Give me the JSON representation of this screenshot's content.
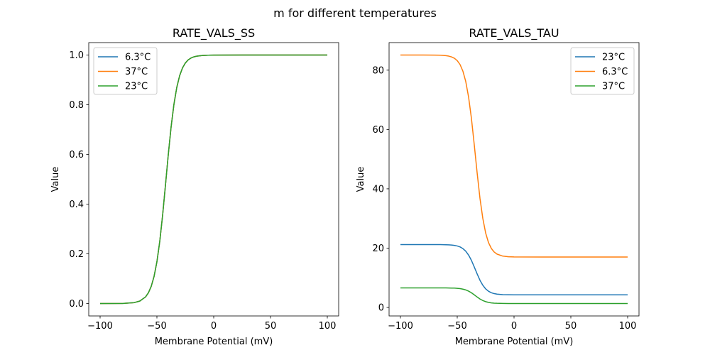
{
  "figure_title": "m for different temperatures",
  "colors": {
    "blue": "#1f77b4",
    "orange": "#ff7f0e",
    "green": "#2ca02c"
  },
  "chart_data": [
    {
      "type": "line",
      "title": "RATE_VALS_SS",
      "xlabel": "Membrane Potential (mV)",
      "ylabel": "Value",
      "xlim": [
        -110,
        110
      ],
      "ylim": [
        -0.05,
        1.05
      ],
      "xticks": [
        -100,
        -50,
        0,
        50,
        100
      ],
      "xtick_labels": [
        "−100",
        "−50",
        "0",
        "50",
        "100"
      ],
      "yticks": [
        0.0,
        0.2,
        0.4,
        0.6,
        0.8,
        1.0
      ],
      "ytick_labels": [
        "0.0",
        "0.2",
        "0.4",
        "0.6",
        "0.8",
        "1.0"
      ],
      "grid": false,
      "legend_placement": "upper-left",
      "x": [
        -100,
        -80,
        -70,
        -65,
        -60,
        -57.5,
        -55,
        -52.5,
        -50,
        -47.5,
        -45,
        -42.5,
        -40,
        -37.5,
        -35,
        -32.5,
        -30,
        -27.5,
        -25,
        -22.5,
        -20,
        -17.5,
        -15,
        -10,
        -5,
        0,
        25,
        50,
        75,
        100
      ],
      "series": [
        {
          "name": "6.3°C",
          "color": "#1f77b4",
          "values": [
            0.0,
            0.0005,
            0.0037,
            0.01,
            0.0266,
            0.0431,
            0.0691,
            0.1091,
            0.168,
            0.2497,
            0.3543,
            0.475,
            0.5987,
            0.7109,
            0.8022,
            0.8699,
            0.9168,
            0.9478,
            0.9677,
            0.9802,
            0.9879,
            0.9926,
            0.9955,
            0.9983,
            0.9994,
            0.9998,
            1.0,
            1.0,
            1.0,
            1.0
          ]
        },
        {
          "name": "37°C",
          "color": "#ff7f0e",
          "values": [
            0.0,
            0.0005,
            0.0037,
            0.01,
            0.0266,
            0.0431,
            0.0691,
            0.1091,
            0.168,
            0.2497,
            0.3543,
            0.475,
            0.5987,
            0.7109,
            0.8022,
            0.8699,
            0.9168,
            0.9478,
            0.9677,
            0.9802,
            0.9879,
            0.9926,
            0.9955,
            0.9983,
            0.9994,
            0.9998,
            1.0,
            1.0,
            1.0,
            1.0
          ]
        },
        {
          "name": "23°C",
          "color": "#2ca02c",
          "values": [
            0.0,
            0.0005,
            0.0037,
            0.01,
            0.0266,
            0.0431,
            0.0691,
            0.1091,
            0.168,
            0.2497,
            0.3543,
            0.475,
            0.5987,
            0.7109,
            0.8022,
            0.8699,
            0.9168,
            0.9478,
            0.9677,
            0.9802,
            0.9879,
            0.9926,
            0.9955,
            0.9983,
            0.9994,
            0.9998,
            1.0,
            1.0,
            1.0,
            1.0
          ]
        }
      ]
    },
    {
      "type": "line",
      "title": "RATE_VALS_TAU",
      "xlabel": "Membrane Potential (mV)",
      "ylabel": "Value",
      "xlim": [
        -110,
        110
      ],
      "ylim": [
        -2.86,
        89.29
      ],
      "xticks": [
        -100,
        -50,
        0,
        50,
        100
      ],
      "xtick_labels": [
        "−100",
        "−50",
        "0",
        "50",
        "100"
      ],
      "yticks": [
        0,
        20,
        40,
        60,
        80
      ],
      "ytick_labels": [
        "0",
        "20",
        "40",
        "60",
        "80"
      ],
      "grid": false,
      "legend_placement": "upper-right",
      "x": [
        -100,
        -80,
        -70,
        -65,
        -60,
        -57.5,
        -55,
        -52.5,
        -50,
        -47.5,
        -45,
        -42.5,
        -40,
        -37.5,
        -35,
        -32.5,
        -30,
        -27.5,
        -25,
        -22.5,
        -20,
        -17.5,
        -15,
        -10,
        -5,
        0,
        25,
        50,
        75,
        100
      ],
      "series": [
        {
          "name": "23°C",
          "color": "#1f77b4",
          "values": [
            21.2,
            21.2,
            21.2,
            21.18,
            21.15,
            21.11,
            21.04,
            20.93,
            20.73,
            20.4,
            19.84,
            18.97,
            17.66,
            15.87,
            13.65,
            11.33,
            9.18,
            7.5,
            6.27,
            5.47,
            4.97,
            4.67,
            4.5,
            4.33,
            4.28,
            4.26,
            4.25,
            4.25,
            4.25,
            4.25
          ]
        },
        {
          "name": "6.3°C",
          "color": "#ff7f0e",
          "values": [
            85.1,
            85.1,
            85.08,
            85.03,
            84.89,
            84.73,
            84.47,
            84.0,
            83.21,
            81.87,
            79.65,
            76.16,
            70.89,
            63.7,
            54.78,
            45.43,
            36.82,
            30.04,
            25.12,
            21.89,
            19.91,
            18.7,
            17.99,
            17.33,
            17.11,
            17.03,
            17,
            17,
            17,
            17
          ]
        },
        {
          "name": "37°C",
          "color": "#2ca02c",
          "values": [
            6.6,
            6.6,
            6.6,
            6.59,
            6.58,
            6.57,
            6.55,
            6.52,
            6.45,
            6.35,
            6.18,
            5.91,
            5.5,
            4.94,
            4.25,
            3.53,
            2.86,
            2.34,
            1.96,
            1.71,
            1.55,
            1.46,
            1.41,
            1.36,
            1.34,
            1.33,
            1.33,
            1.33,
            1.33,
            1.33
          ]
        }
      ]
    }
  ]
}
